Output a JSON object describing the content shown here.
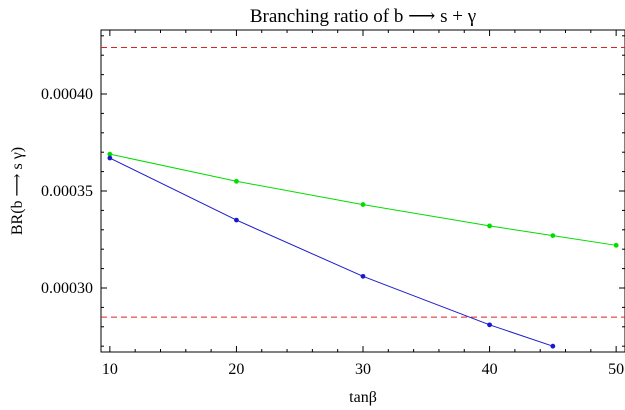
{
  "chart_data": {
    "type": "line",
    "title": "Branching ratio of b ⟶ s + γ",
    "xlabel": "tanβ",
    "ylabel": "BR(b ⟶ s γ)",
    "xlim": [
      9.3,
      50.7
    ],
    "ylim": [
      0.000267,
      0.000433
    ],
    "xticks": [
      10,
      20,
      30,
      40,
      50
    ],
    "xtick_labels": [
      "10",
      "20",
      "30",
      "40",
      "50"
    ],
    "yticks": [
      0.0003,
      0.00035,
      0.0004
    ],
    "ytick_labels": [
      "0.00030",
      "0.00035",
      "0.00040"
    ],
    "grid": false,
    "series": [
      {
        "color": "#00dd00",
        "x": [
          10,
          20,
          30,
          40,
          45,
          50
        ],
        "values": [
          0.000369,
          0.000355,
          0.000343,
          0.000332,
          0.000327,
          0.000322
        ]
      },
      {
        "color": "#1a1acc",
        "x": [
          10,
          20,
          30,
          40,
          45
        ],
        "values": [
          0.000367,
          0.000335,
          0.000306,
          0.000281,
          0.00027
        ]
      }
    ],
    "reference_lines": [
      {
        "y": 0.000424,
        "color": "#dd2222",
        "style": "dashed"
      },
      {
        "y": 0.000285,
        "color": "#dd2222",
        "style": "dashed"
      }
    ]
  }
}
